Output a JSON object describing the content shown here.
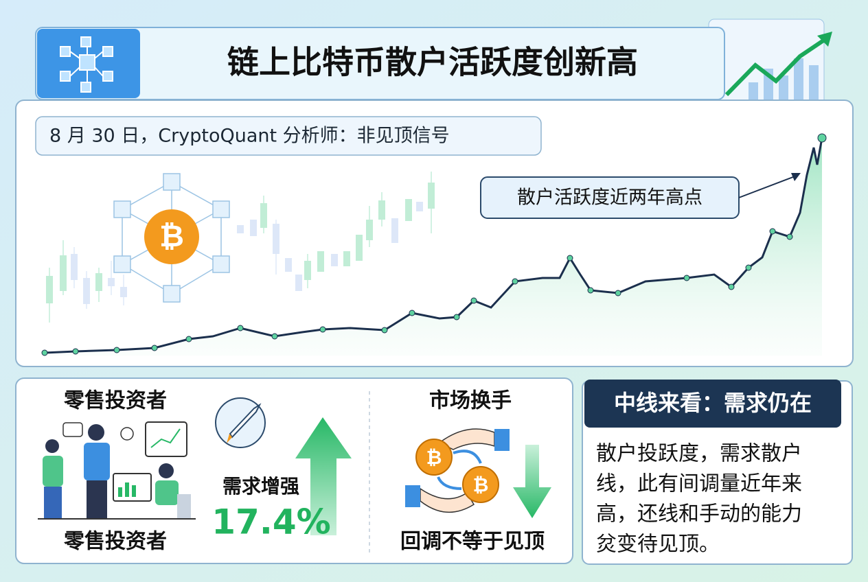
{
  "header": {
    "title": "链上比特币散户活跃度创新高"
  },
  "chart_panel": {
    "subtitle": "8 月 30 日，CryptoQuant 分析师：非见顶信号",
    "annotation": "散户活跃度近两年高点"
  },
  "retail_panel": {
    "heading": "零售投资者",
    "caption": "零售投资者",
    "demand_label": "需求增强",
    "demand_change": "17.4%"
  },
  "market_panel": {
    "heading": "市场换手",
    "caption": "回调不等于见顶"
  },
  "outlook_panel": {
    "heading": "中线来看：需求仍在",
    "body_lines": [
      "散户投跃度，需求散户",
      "线，此有间调量近年来",
      "高，还线和手动的能力",
      "炃变待见顶。"
    ]
  }
}
